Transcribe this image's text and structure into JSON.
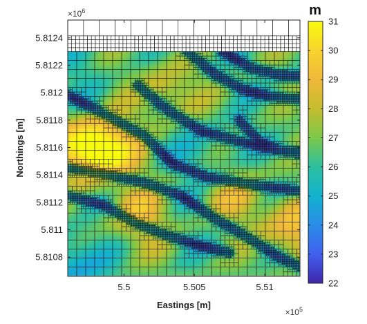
{
  "chart_data": {
    "type": "heatmap",
    "title": "",
    "xlabel": "Eastings [m]",
    "ylabel": "Northings [m]",
    "x_exponent_label": "×10",
    "x_exponent_power": "5",
    "y_exponent_label": "×10",
    "y_exponent_power": "6",
    "xlim": [
      5.496,
      5.5125
    ],
    "ylim": [
      5.81066,
      5.81253
    ],
    "xticks": [
      5.5,
      5.505,
      5.51
    ],
    "xtick_labels": [
      "5.5",
      "5.505",
      "5.51"
    ],
    "yticks": [
      5.8108,
      5.811,
      5.8112,
      5.8114,
      5.8116,
      5.8118,
      5.812,
      5.8122,
      5.8124
    ],
    "ytick_labels": [
      "5.8108",
      "5.811",
      "5.8112",
      "5.8114",
      "5.8116",
      "5.8118",
      "5.812",
      "5.8122",
      "5.8124"
    ],
    "data_extent": {
      "x": [
        5.496,
        5.5125
      ],
      "y": [
        5.81068,
        5.8123
      ]
    },
    "colorbar": {
      "title": "m",
      "min": 22,
      "max": 31,
      "ticks": [
        22,
        23,
        24,
        25,
        26,
        27,
        28,
        29,
        30,
        31
      ],
      "tick_labels": [
        "22",
        "23",
        "24",
        "25",
        "26",
        "27",
        "28",
        "29",
        "30",
        "31"
      ],
      "colors": [
        "#3e26a8",
        "#4060f0",
        "#2a8ce8",
        "#12b2cf",
        "#2cc0a0",
        "#7cc84a",
        "#c4bd2e",
        "#f0b83a",
        "#f8d42e",
        "#f9fb0e"
      ]
    },
    "grid": "adaptive quadtree mesh, refined along channels",
    "channels": [
      {
        "points": [
          [
            5.496,
            5.81198
          ],
          [
            5.4985,
            5.81185
          ],
          [
            5.5015,
            5.81168
          ],
          [
            5.5035,
            5.81148
          ],
          [
            5.506,
            5.81138
          ],
          [
            5.509,
            5.81133
          ],
          [
            5.5125,
            5.81128
          ]
        ]
      },
      {
        "points": [
          [
            5.496,
            5.81145
          ],
          [
            5.499,
            5.8114
          ],
          [
            5.5015,
            5.81134
          ],
          [
            5.504,
            5.81125
          ],
          [
            5.5065,
            5.81108
          ],
          [
            5.509,
            5.81093
          ],
          [
            5.511,
            5.8108
          ],
          [
            5.5125,
            5.81073
          ]
        ]
      },
      {
        "points": [
          [
            5.496,
            5.81125
          ],
          [
            5.4985,
            5.81118
          ],
          [
            5.501,
            5.81104
          ],
          [
            5.503,
            5.81096
          ],
          [
            5.5055,
            5.81088
          ],
          [
            5.5075,
            5.81083
          ]
        ]
      },
      {
        "points": [
          [
            5.501,
            5.81205
          ],
          [
            5.503,
            5.81188
          ],
          [
            5.5055,
            5.81172
          ],
          [
            5.508,
            5.81165
          ],
          [
            5.51,
            5.8116
          ],
          [
            5.5125,
            5.81155
          ]
        ]
      },
      {
        "points": [
          [
            5.5045,
            5.8123
          ],
          [
            5.5065,
            5.81213
          ],
          [
            5.5085,
            5.81202
          ],
          [
            5.5105,
            5.81197
          ],
          [
            5.5125,
            5.81195
          ]
        ]
      },
      {
        "points": [
          [
            5.507,
            5.8123
          ],
          [
            5.509,
            5.81218
          ],
          [
            5.511,
            5.81213
          ],
          [
            5.5125,
            5.81212
          ]
        ]
      },
      {
        "points": [
          [
            5.5082,
            5.8118
          ],
          [
            5.5095,
            5.81165
          ],
          [
            5.511,
            5.81158
          ],
          [
            5.5125,
            5.81157
          ]
        ]
      }
    ],
    "warm_spots": [
      {
        "x": 5.4972,
        "y": 5.8116,
        "value": 30.5
      },
      {
        "x": 5.499,
        "y": 5.81158,
        "value": 30.0
      },
      {
        "x": 5.501,
        "y": 5.8111,
        "value": 29.0
      },
      {
        "x": 5.512,
        "y": 5.811,
        "value": 29.5
      },
      {
        "x": 5.503,
        "y": 5.812,
        "value": 28.5
      },
      {
        "x": 5.508,
        "y": 5.81125,
        "value": 28.5
      }
    ],
    "cool_spots": [
      {
        "x": 5.4965,
        "y": 5.81075,
        "value": 24.5
      },
      {
        "x": 5.497,
        "y": 5.81215,
        "value": 26.0
      },
      {
        "x": 5.506,
        "y": 5.81155,
        "value": 25.5
      }
    ]
  }
}
